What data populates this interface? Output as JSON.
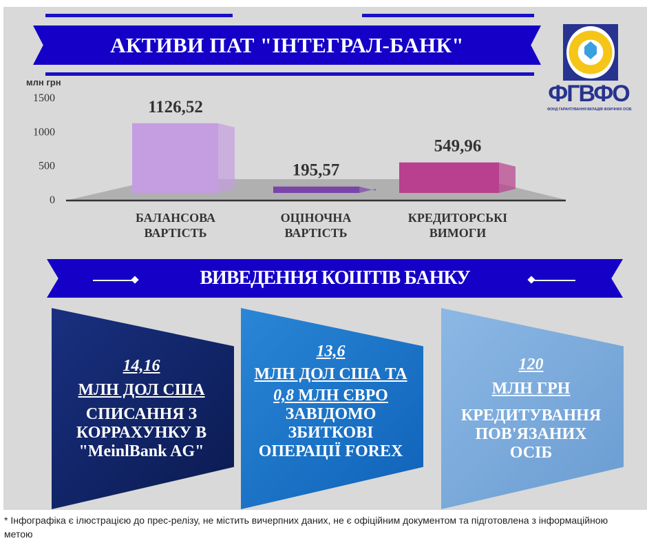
{
  "header": {
    "title": "АКТИВИ ПАТ \"ІНТЕГРАЛ-БАНК\""
  },
  "logo": {
    "text": "ФГВФО",
    "subtitle": "ФОНД ГАРАНТУВАННЯ ВКЛАДІВ ФІЗИЧНИХ ОСІБ"
  },
  "chart_data": {
    "type": "bar",
    "ylabel": "млн грн",
    "ylim": [
      0,
      1500
    ],
    "yticks": [
      "0",
      "500",
      "1000",
      "1500"
    ],
    "categories": [
      "БАЛАНСОВА ВАРТІСТЬ",
      "ОЦІНОЧНА ВАРТІСТЬ",
      "КРЕДИТОРСЬКІ ВИМОГИ"
    ],
    "category_lines": [
      [
        "БАЛАНСОВА",
        "ВАРТІСТЬ"
      ],
      [
        "ОЦІНОЧНА",
        "ВАРТІСТЬ"
      ],
      [
        "КРЕДИТОРСЬКІ",
        "ВИМОГИ"
      ]
    ],
    "values": [
      1126.52,
      195.57,
      549.96
    ],
    "data_labels": [
      "1126,52",
      "195,57",
      "549,96"
    ],
    "colors": [
      "#c49ee0",
      "#7a44a8",
      "#b8408e"
    ],
    "grid": false
  },
  "section": {
    "title": "ВИВЕДЕННЯ КОШТІВ БАНКУ"
  },
  "cards": [
    {
      "amount": "14,16",
      "unit": "МЛН ДОЛ США",
      "desc": [
        "СПИСАННЯ З",
        "КОРРАХУНКУ В",
        "\"MeinlBank AG\""
      ],
      "color": "#0d2060"
    },
    {
      "amount": "13,6",
      "unit": "МЛН ДОЛ США ТА",
      "unit2_amount": "0,8",
      "unit2": " МЛН ЄВРО",
      "desc": [
        "ЗАВІДОМО",
        "ЗБИТКОВІ",
        "ОПЕРАЦІЇ FOREX"
      ],
      "color": "#1670c4"
    },
    {
      "amount": "120",
      "unit": "МЛН ГРН",
      "desc": [
        "КРЕДИТУВАННЯ",
        "ПОВ'ЯЗАНИХ",
        "ОСІБ"
      ],
      "color": "#74a6d8"
    }
  ],
  "footer": {
    "note": "* Інфографіка є ілюстрацією до прес-релізу, не містить вичерпних даних, не є офіційним документом та підготовлена з інформаційною метою"
  }
}
